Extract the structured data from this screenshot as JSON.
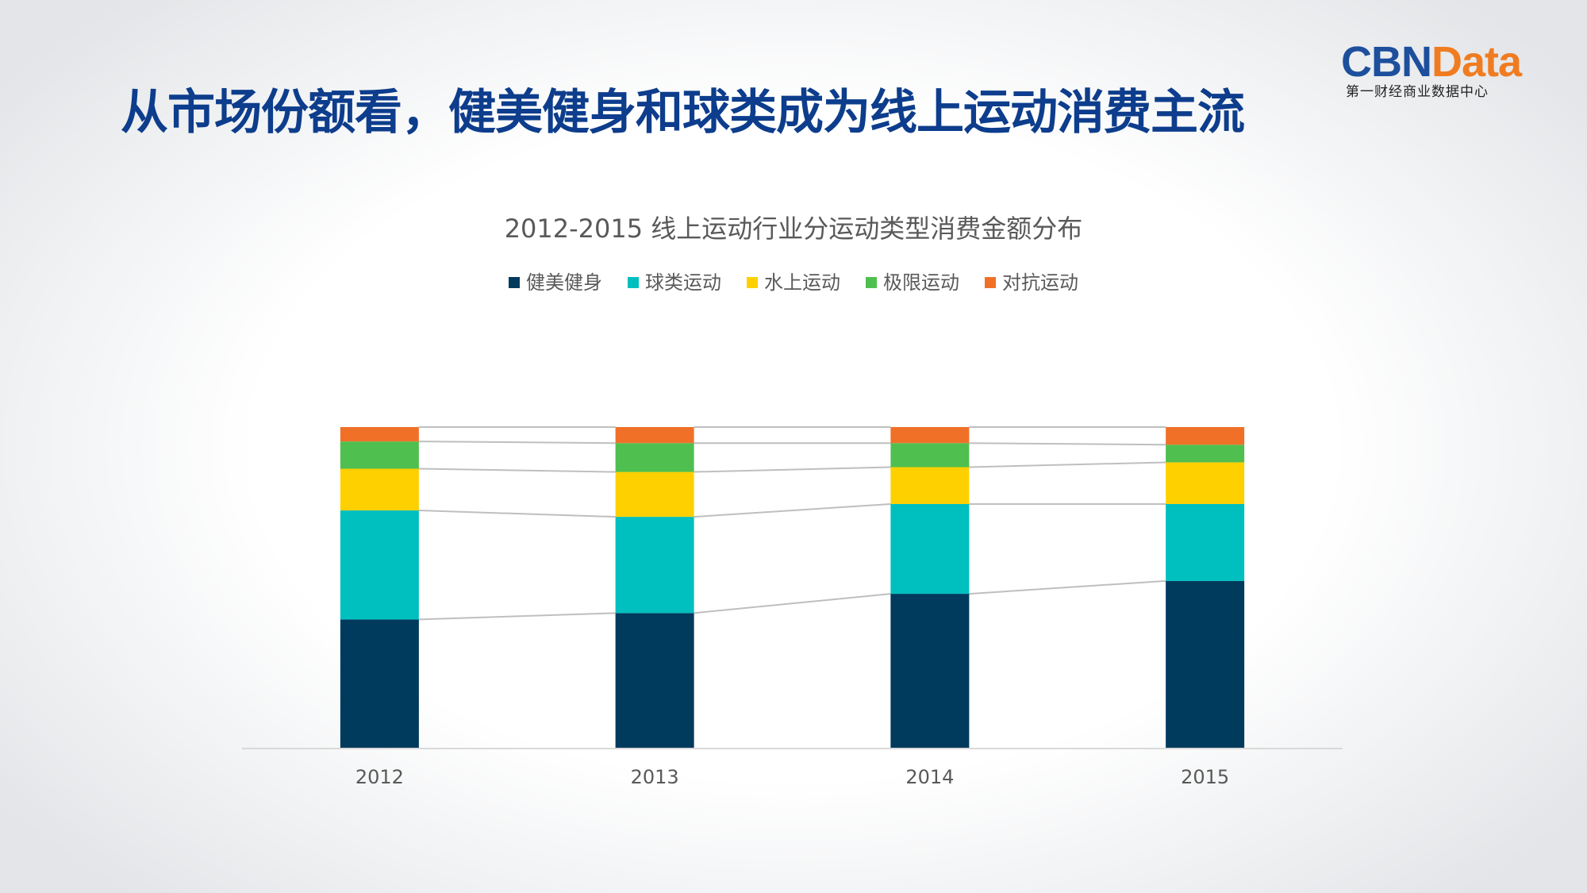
{
  "slide": {
    "title": "从市场份额看，健美健身和球类成为线上运动消费主流"
  },
  "brand": {
    "logo_primary": "CBN",
    "logo_secondary": "Data",
    "tagline": "第一财经商业数据中心"
  },
  "chart_data": {
    "type": "bar",
    "stacked": true,
    "percent_stacked": true,
    "title": "2012-2015 线上运动行业分运动类型消费金额分布",
    "xlabel": "",
    "ylabel": "",
    "ylim": [
      0,
      100
    ],
    "grid": false,
    "legend_position": "top",
    "categories": [
      "2012",
      "2013",
      "2014",
      "2015"
    ],
    "series": [
      {
        "name": "健美健身",
        "color": "#003a5d",
        "values": [
          40,
          42,
          48,
          52
        ]
      },
      {
        "name": "球类运动",
        "color": "#00bfbf",
        "values": [
          34,
          30,
          28,
          24
        ]
      },
      {
        "name": "水上运动",
        "color": "#ffd000",
        "values": [
          13,
          14,
          11.5,
          13
        ]
      },
      {
        "name": "极限运动",
        "color": "#4fbf4f",
        "values": [
          8.5,
          9,
          7.5,
          5.5
        ]
      },
      {
        "name": "对抗运动",
        "color": "#f07028",
        "values": [
          4.5,
          5,
          5,
          5.5
        ]
      }
    ]
  }
}
